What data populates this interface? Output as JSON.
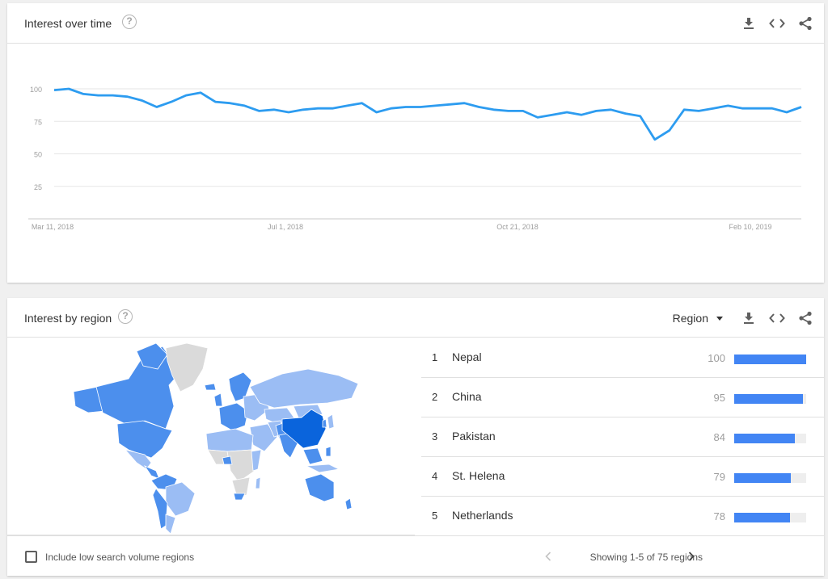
{
  "colors": {
    "line": "#2d9cf0",
    "bar": "#4285f4",
    "map_high": "#0a64dc",
    "map_mid": "#4c8fed",
    "map_low": "#9bbdf4",
    "map_none": "#dadada"
  },
  "interest_over_time": {
    "title": "Interest over time",
    "icons": [
      "download-icon",
      "embed-icon",
      "share-icon"
    ],
    "chart_data": {
      "type": "line",
      "title": "",
      "xlabel": "",
      "ylabel": "",
      "ylim": [
        0,
        100
      ],
      "yticks": [
        "100",
        "75",
        "50",
        "25"
      ],
      "xtick_labels": [
        "Mar 11, 2018",
        "Jul 1, 2018",
        "Oct 21, 2018",
        "Feb 10, 2019"
      ],
      "grid": true,
      "series": [
        {
          "values": [
            99,
            100,
            96,
            95,
            95,
            94,
            91,
            86,
            90,
            95,
            97,
            90,
            89,
            87,
            83,
            84,
            82,
            84,
            85,
            85,
            87,
            89,
            82,
            85,
            86,
            86,
            87,
            88,
            89,
            86,
            84,
            83,
            83,
            78,
            80,
            82,
            80,
            83,
            84,
            81,
            79,
            61,
            68,
            84,
            83,
            85,
            87,
            85,
            85,
            85,
            82,
            86
          ]
        }
      ]
    }
  },
  "interest_by_region": {
    "title": "Interest by region",
    "selector_label": "Region",
    "icons": [
      "download-icon",
      "embed-icon",
      "share-icon"
    ],
    "regions": [
      {
        "rank": "1",
        "name": "Nepal",
        "value": "100",
        "fraction": 1.0
      },
      {
        "rank": "2",
        "name": "China",
        "value": "95",
        "fraction": 0.95
      },
      {
        "rank": "3",
        "name": "Pakistan",
        "value": "84",
        "fraction": 0.84
      },
      {
        "rank": "4",
        "name": "St. Helena",
        "value": "79",
        "fraction": 0.79
      },
      {
        "rank": "5",
        "name": "Netherlands",
        "value": "78",
        "fraction": 0.78
      }
    ],
    "checkbox_label": "Include low search volume regions",
    "pager_text": "Showing 1-5 of 75 regions"
  }
}
